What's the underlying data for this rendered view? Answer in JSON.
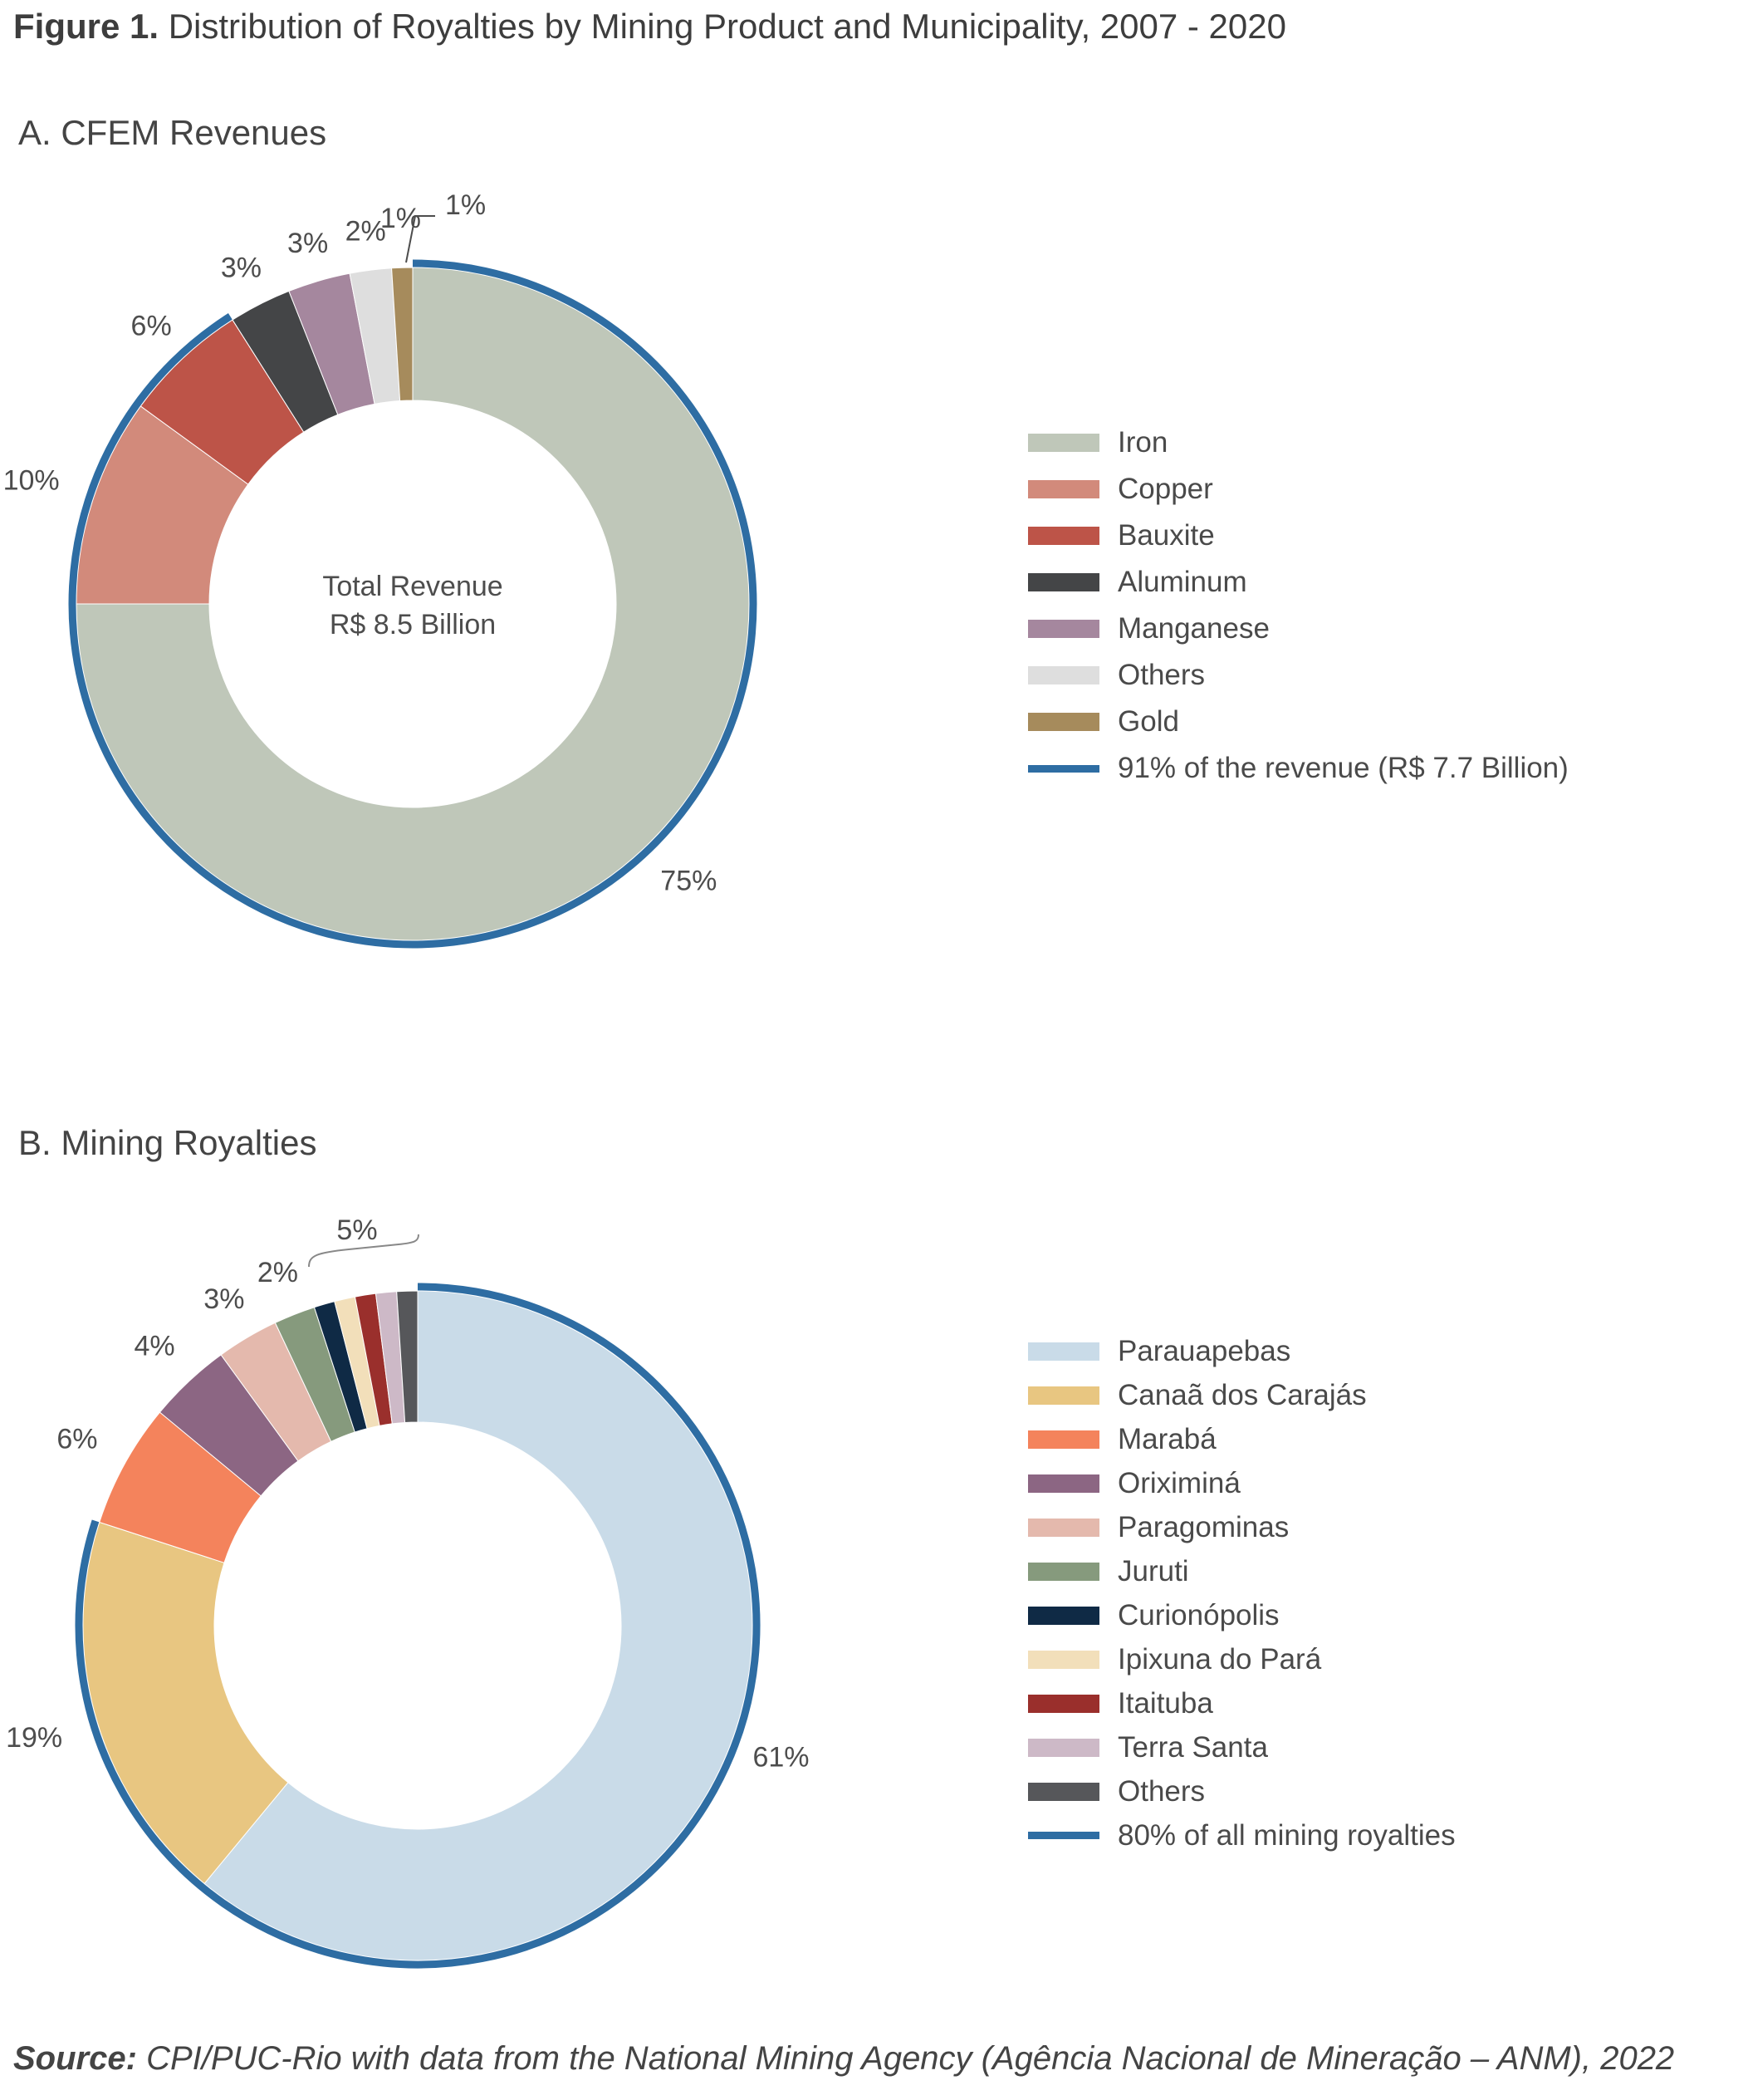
{
  "figure": {
    "label": "Figure 1.",
    "title": "Distribution of Royalties by Mining Product and Municipality, 2007 - 2020"
  },
  "source": {
    "label": "Source:",
    "text": "CPI/PUC-Rio with data from the National Mining Agency (Agência Nacional de Mineração – ANM), 2022"
  },
  "chart_data": [
    {
      "type": "donut",
      "title": "A. CFEM Revenues",
      "center_text": [
        "Total Revenue",
        "R$ 8.5 Billion"
      ],
      "slices": [
        {
          "name": "Iron",
          "value": 75,
          "label": "75%",
          "color": "#bfc7b9"
        },
        {
          "name": "Copper",
          "value": 10,
          "label": "10%",
          "color": "#d28a7b"
        },
        {
          "name": "Bauxite",
          "value": 6,
          "label": "6%",
          "color": "#bd5448"
        },
        {
          "name": "Aluminum",
          "value": 3,
          "label": "3%",
          "color": "#444547"
        },
        {
          "name": "Manganese",
          "value": 3,
          "label": "3%",
          "color": "#a5879e"
        },
        {
          "name": "Others",
          "value": 2,
          "label": "2%",
          "color": "#dedede"
        },
        {
          "name": "Gold",
          "value": 1,
          "label": "1%",
          "color": "#a68b5c"
        }
      ],
      "highlight": {
        "label": "91% of the revenue (R$ 7.7 Billion)",
        "color": "#2e6da3",
        "share": 91
      }
    },
    {
      "type": "donut",
      "title": "B. Mining Royalties",
      "slices": [
        {
          "name": "Parauapebas",
          "value": 61,
          "label": "61%",
          "color": "#c9dbe8"
        },
        {
          "name": "Canaã dos Carajás",
          "value": 19,
          "label": "19%",
          "color": "#e8c681"
        },
        {
          "name": "Marabá",
          "value": 6,
          "label": "6%",
          "color": "#f4835c"
        },
        {
          "name": "Oriximiná",
          "value": 4,
          "label": "4%",
          "color": "#8c6683"
        },
        {
          "name": "Paragominas",
          "value": 3,
          "label": "3%",
          "color": "#e4b9ad"
        },
        {
          "name": "Juruti",
          "value": 2,
          "label": "2%",
          "color": "#869a7d"
        },
        {
          "name": "Curionópolis",
          "value": 1,
          "label": "",
          "color": "#0f2a45"
        },
        {
          "name": "Ipixuna do Pará",
          "value": 1,
          "label": "",
          "color": "#f2dfba"
        },
        {
          "name": "Itaituba",
          "value": 1,
          "label": "",
          "color": "#9a2f2c"
        },
        {
          "name": "Terra Santa",
          "value": 1,
          "label": "",
          "color": "#cdb9c7"
        },
        {
          "name": "Others",
          "value": 1,
          "label": "",
          "color": "#56575a"
        }
      ],
      "group_label": "5%",
      "highlight": {
        "label": "80% of all mining royalties",
        "color": "#2e6da3",
        "share": 80
      }
    }
  ]
}
